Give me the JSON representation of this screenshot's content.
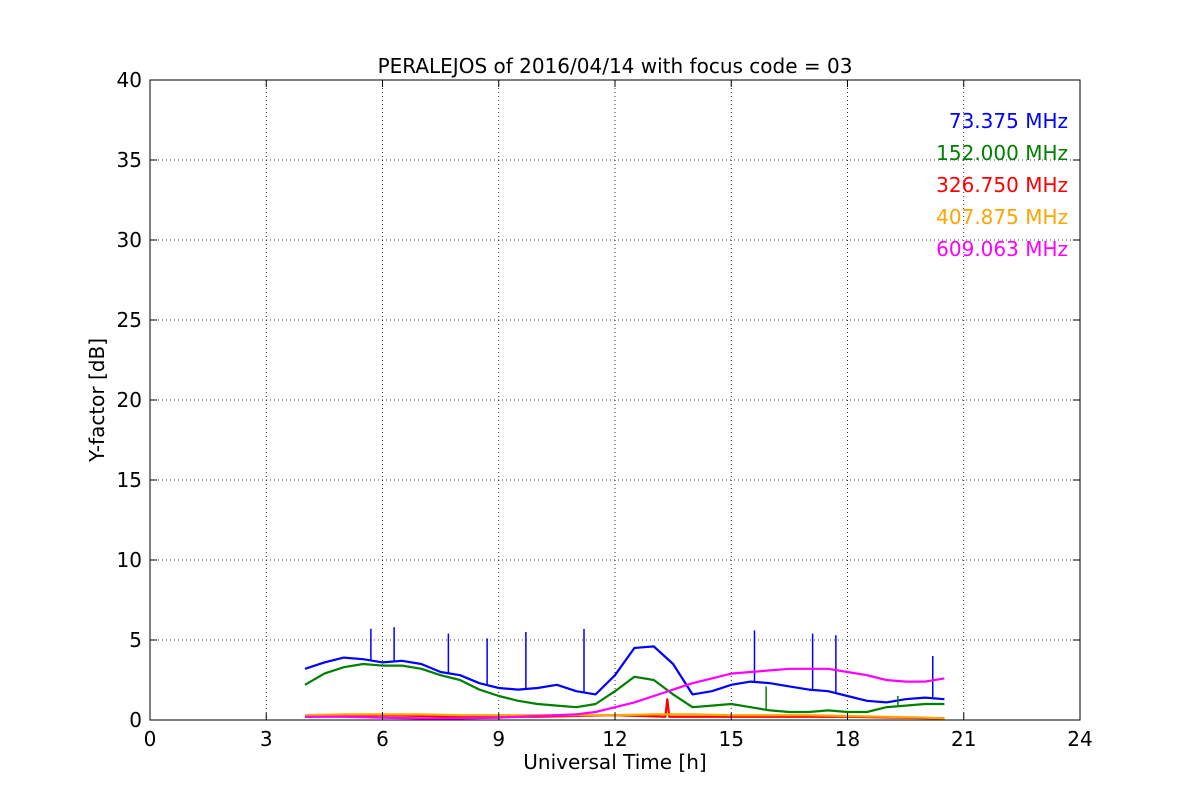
{
  "chart_data": {
    "type": "line",
    "title": "PERALEJOS of 2016/04/14 with focus code = 03",
    "xlabel": "Universal Time [h]",
    "ylabel": "Y-factor [dB]",
    "xlim": [
      0,
      24
    ],
    "ylim": [
      0,
      40
    ],
    "xticks": [
      "0",
      "3",
      "6",
      "9",
      "12",
      "15",
      "18",
      "21",
      "24"
    ],
    "yticks": [
      "0",
      "5",
      "10",
      "15",
      "20",
      "25",
      "30",
      "35",
      "40"
    ],
    "grid": true,
    "legend_position": "top-right",
    "series": [
      {
        "name": "73.375 MHz",
        "color": "#0000ff",
        "x": [
          4.0,
          4.5,
          5.0,
          5.5,
          6.0,
          6.5,
          7.0,
          7.5,
          8.0,
          8.5,
          9.0,
          9.5,
          10.0,
          10.5,
          11.0,
          11.5,
          12.0,
          12.5,
          13.0,
          13.5,
          14.0,
          14.5,
          15.0,
          15.5,
          16.0,
          16.5,
          17.0,
          17.5,
          18.0,
          18.5,
          19.0,
          19.5,
          20.0,
          20.5
        ],
        "y": [
          3.2,
          3.6,
          3.9,
          3.8,
          3.6,
          3.7,
          3.5,
          3.0,
          2.8,
          2.3,
          2.0,
          1.9,
          2.0,
          2.2,
          1.8,
          1.6,
          2.8,
          4.5,
          4.6,
          3.5,
          1.6,
          1.8,
          2.2,
          2.4,
          2.3,
          2.1,
          1.9,
          1.8,
          1.5,
          1.2,
          1.1,
          1.3,
          1.4,
          1.3
        ],
        "spikes": [
          [
            5.7,
            5.7
          ],
          [
            6.3,
            5.8
          ],
          [
            7.7,
            5.4
          ],
          [
            8.7,
            5.1
          ],
          [
            9.7,
            5.5
          ],
          [
            11.2,
            5.7
          ],
          [
            15.6,
            5.6
          ],
          [
            17.1,
            5.4
          ],
          [
            17.7,
            5.3
          ],
          [
            20.2,
            4.0
          ]
        ]
      },
      {
        "name": "152.000 MHz",
        "color": "#008000",
        "x": [
          4.0,
          4.5,
          5.0,
          5.5,
          6.0,
          6.5,
          7.0,
          7.5,
          8.0,
          8.5,
          9.0,
          9.5,
          10.0,
          10.5,
          11.0,
          11.5,
          12.0,
          12.5,
          13.0,
          13.5,
          14.0,
          14.5,
          15.0,
          15.5,
          16.0,
          16.5,
          17.0,
          17.5,
          18.0,
          18.5,
          19.0,
          19.5,
          20.0,
          20.5
        ],
        "y": [
          2.2,
          2.9,
          3.3,
          3.5,
          3.4,
          3.4,
          3.2,
          2.8,
          2.5,
          1.9,
          1.5,
          1.2,
          1.0,
          0.9,
          0.8,
          1.0,
          1.8,
          2.7,
          2.5,
          1.6,
          0.8,
          0.9,
          1.0,
          0.8,
          0.6,
          0.5,
          0.5,
          0.6,
          0.5,
          0.5,
          0.8,
          0.9,
          1.0,
          1.0
        ],
        "spikes": [
          [
            15.9,
            2.1
          ],
          [
            19.3,
            1.5
          ]
        ]
      },
      {
        "name": "326.750 MHz",
        "color": "#ff0000",
        "x": [
          4.0,
          6.0,
          8.0,
          10.0,
          12.0,
          13.3,
          13.35,
          13.4,
          14.0,
          16.0,
          18.0,
          20.5
        ],
        "y": [
          0.2,
          0.3,
          0.2,
          0.2,
          0.3,
          0.2,
          1.3,
          0.2,
          0.2,
          0.2,
          0.2,
          0.1
        ],
        "spikes": []
      },
      {
        "name": "407.875 MHz",
        "color": "#ffa500",
        "x": [
          4.0,
          5.0,
          6.0,
          7.0,
          8.0,
          9.0,
          10.0,
          11.0,
          12.0,
          13.0,
          14.0,
          15.0,
          16.0,
          17.0,
          18.0,
          19.0,
          20.0,
          20.5
        ],
        "y": [
          0.3,
          0.35,
          0.35,
          0.35,
          0.3,
          0.3,
          0.3,
          0.3,
          0.3,
          0.35,
          0.35,
          0.3,
          0.3,
          0.3,
          0.25,
          0.2,
          0.15,
          0.1
        ],
        "spikes": []
      },
      {
        "name": "609.063 MHz",
        "color": "#ff00ff",
        "x": [
          4.0,
          5.0,
          6.0,
          7.0,
          8.0,
          9.0,
          10.0,
          11.0,
          11.5,
          12.0,
          12.5,
          13.0,
          13.5,
          14.0,
          14.5,
          15.0,
          15.5,
          16.0,
          16.5,
          17.0,
          17.5,
          18.0,
          18.5,
          19.0,
          19.5,
          20.0,
          20.5
        ],
        "y": [
          0.2,
          0.2,
          0.15,
          0.1,
          0.1,
          0.15,
          0.25,
          0.35,
          0.5,
          0.8,
          1.1,
          1.5,
          1.9,
          2.3,
          2.6,
          2.9,
          3.0,
          3.1,
          3.2,
          3.2,
          3.2,
          3.0,
          2.8,
          2.5,
          2.4,
          2.4,
          2.6
        ],
        "spikes": []
      }
    ]
  }
}
